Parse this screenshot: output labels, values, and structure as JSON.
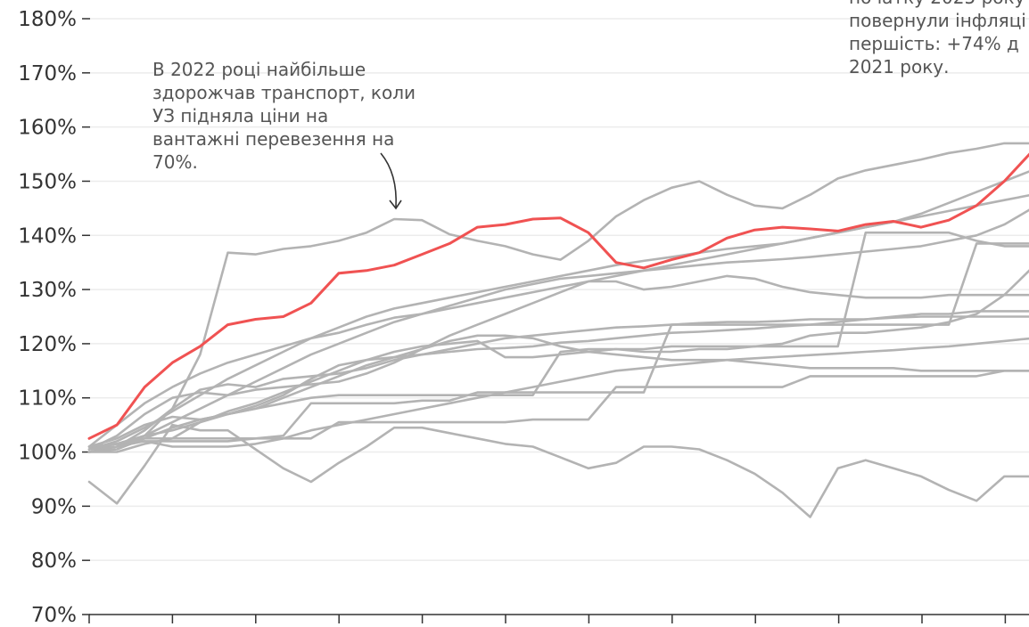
{
  "chart_data": {
    "type": "line",
    "y_ticks": [
      "70%",
      "80%",
      "90%",
      "100%",
      "110%",
      "120%",
      "130%",
      "140%",
      "150%",
      "160%",
      "170%",
      "180%"
    ],
    "ylim": [
      70,
      180
    ],
    "x_ticks_count": 12,
    "grid": true,
    "highlight_color": "#f05252",
    "base_color": "#b3b3b3",
    "x": [
      0,
      1,
      2,
      3,
      4,
      5,
      6,
      7,
      8,
      9,
      10,
      11,
      12,
      13,
      14,
      15,
      16,
      17,
      18,
      19,
      20,
      21,
      22,
      23,
      24,
      25,
      26,
      27,
      28,
      29,
      30,
      31,
      32,
      33,
      34,
      35
    ],
    "series": [
      {
        "highlight": true,
        "values": [
          102.5,
          105,
          112,
          116.5,
          119.5,
          123.5,
          124.5,
          125,
          127.5,
          133,
          133.5,
          134.5,
          136.5,
          138.5,
          141.5,
          142,
          143,
          143.2,
          140.5,
          135,
          134,
          135.5,
          136.8,
          139.5,
          141,
          141.5,
          141.2,
          140.8,
          142,
          142.6,
          141.5,
          142.8,
          145.5,
          150,
          155.5,
          160
        ]
      },
      {
        "values": [
          101,
          101.5,
          103,
          108,
          118,
          136.8,
          136.5,
          137.5,
          138,
          139,
          140.5,
          143,
          142.8,
          140.2,
          139,
          138,
          136.5,
          135.5,
          139,
          143.5,
          146.5,
          148.8,
          150,
          147.5,
          145.5,
          145,
          147.5,
          150.5,
          152,
          153,
          154,
          155.2,
          156,
          157,
          157,
          157
        ]
      },
      {
        "values": [
          101,
          105,
          109,
          112,
          114.5,
          116.5,
          118,
          119.5,
          121,
          122,
          123.5,
          124.8,
          125.5,
          126.5,
          127.5,
          128.5,
          129.5,
          130.5,
          131.5,
          132.5,
          133.5,
          134.5,
          135.5,
          136.5,
          137.5,
          138.5,
          139.5,
          140.5,
          141.5,
          142.5,
          144,
          146,
          148,
          150,
          152,
          153
        ]
      },
      {
        "values": [
          100.5,
          102,
          104.5,
          107.5,
          110.5,
          113.5,
          116,
          118.5,
          121,
          123,
          125,
          126.5,
          127.5,
          128.5,
          129.5,
          130.5,
          131.5,
          132.5,
          133.5,
          134.5,
          135.3,
          136,
          136.8,
          137.5,
          138,
          138.5,
          139.5,
          140.5,
          141.5,
          142.5,
          143.5,
          144.5,
          145.5,
          146.5,
          147.5,
          148.5
        ]
      },
      {
        "values": [
          100,
          101,
          103,
          105.5,
          108,
          110.5,
          113,
          115.5,
          118,
          120,
          122,
          124,
          125.5,
          127,
          128.5,
          130,
          131,
          132,
          132.5,
          133,
          133.5,
          134,
          134.5,
          135,
          135.3,
          135.6,
          136,
          136.5,
          137,
          137.5,
          138,
          139,
          140,
          142,
          145,
          148
        ]
      },
      {
        "values": [
          100.5,
          103,
          107,
          110,
          111,
          110.5,
          111.5,
          112,
          112.5,
          113,
          114.5,
          116.5,
          119,
          121.5,
          123.5,
          125.5,
          127.5,
          129.5,
          131.5,
          131.5,
          130,
          130.5,
          131.5,
          132.5,
          132,
          130.5,
          129.5,
          129,
          128.5,
          128.5,
          128.5,
          129,
          129,
          129,
          129,
          129
        ]
      },
      {
        "values": [
          101,
          102.5,
          105,
          106.5,
          106,
          107,
          108.5,
          110.5,
          113.5,
          116,
          117,
          117.5,
          118,
          118.5,
          119,
          119.2,
          119.5,
          120.2,
          120.5,
          121,
          121.5,
          122,
          122.2,
          122.5,
          122.8,
          123.2,
          123.5,
          124,
          124.5,
          125,
          125.5,
          125.5,
          126,
          126,
          126,
          126
        ]
      },
      {
        "values": [
          100,
          101,
          104,
          108,
          111.5,
          112.5,
          112,
          113.5,
          114,
          114.5,
          115.5,
          117,
          118,
          119,
          120,
          121,
          121.5,
          122,
          122.5,
          123,
          123.2,
          123.5,
          123.8,
          124,
          124,
          124.2,
          124.5,
          124.5,
          124.5,
          124.8,
          125,
          125,
          125,
          125,
          125,
          125
        ]
      },
      {
        "values": [
          100,
          100.5,
          102.5,
          104.5,
          106,
          107,
          108,
          109,
          110,
          110.5,
          110.5,
          110.5,
          110.5,
          110.5,
          110.5,
          110.5,
          110.5,
          118.5,
          119,
          119,
          119,
          119.5,
          119.5,
          119.5,
          119.5,
          119.5,
          119.5,
          119.5,
          140.5,
          140.5,
          140.5,
          140.5,
          139,
          138,
          138,
          138
        ]
      },
      {
        "values": [
          101,
          101.5,
          102.5,
          102.5,
          102.5,
          102.5,
          102.5,
          103,
          109,
          109,
          109,
          109,
          109.5,
          109.5,
          111,
          111,
          111,
          111,
          111,
          111,
          111,
          123.5,
          123.5,
          123.5,
          123.5,
          123.5,
          123.5,
          123.5,
          123.5,
          123.5,
          123.5,
          123.5,
          138.5,
          138.5,
          138.5,
          138.5
        ]
      },
      {
        "values": [
          101,
          101.5,
          102,
          102,
          102,
          102,
          102.5,
          102.5,
          102.5,
          105.5,
          105.5,
          105.5,
          105.5,
          105.5,
          105.5,
          105.5,
          106,
          106,
          106,
          112,
          112,
          112,
          112,
          112,
          112,
          112,
          114,
          114,
          114,
          114,
          114,
          114,
          114,
          115,
          115,
          115
        ]
      },
      {
        "values": [
          100.5,
          101,
          102,
          101,
          101,
          101,
          101.5,
          102.5,
          104,
          105,
          106,
          107,
          108,
          109,
          110,
          111,
          112,
          113,
          114,
          115,
          115.5,
          116,
          116.5,
          117,
          117.3,
          117.6,
          117.9,
          118.2,
          118.5,
          118.8,
          119.2,
          119.5,
          120,
          120.5,
          121,
          121
        ]
      },
      {
        "values": [
          100.5,
          101.5,
          103,
          104,
          105.5,
          107.5,
          109,
          111,
          113,
          115,
          117,
          118.5,
          119.5,
          120,
          120.5,
          117.5,
          117.5,
          118,
          118.5,
          119,
          118.5,
          118.5,
          119,
          119,
          119.5,
          120,
          121.5,
          122,
          122,
          122.5,
          123,
          124,
          125.5,
          129,
          134,
          138
        ]
      },
      {
        "values": [
          94.5,
          90.5,
          97.5,
          105,
          104,
          104,
          100.5,
          97,
          94.5,
          98,
          101,
          104.5,
          104.5,
          103.5,
          102.5,
          101.5,
          101,
          99,
          97,
          98,
          101,
          101,
          100.5,
          98.5,
          96,
          92.5,
          88,
          97,
          98.5,
          97,
          95.5,
          93,
          91,
          95.5,
          95.5,
          93
        ]
      },
      {
        "values": [
          100,
          100,
          101.5,
          102.5,
          105.5,
          107,
          108,
          110,
          112,
          114,
          116,
          117.5,
          119,
          120.5,
          121.5,
          121.5,
          121,
          119.5,
          118.5,
          118,
          117.5,
          117,
          117,
          117,
          116.5,
          116,
          115.5,
          115.5,
          115.5,
          115.5,
          115,
          115,
          115,
          115,
          115,
          115
        ]
      }
    ]
  },
  "annotations": {
    "left": "В 2022 році найбільше\nздорожчав транспорт, коли\nУЗ підняла ціни на\nвантажні перевезення на\n70%.",
    "right": "початку 2025 року\nповернули інфляці\nпершість: +74% д\n2021 року."
  }
}
